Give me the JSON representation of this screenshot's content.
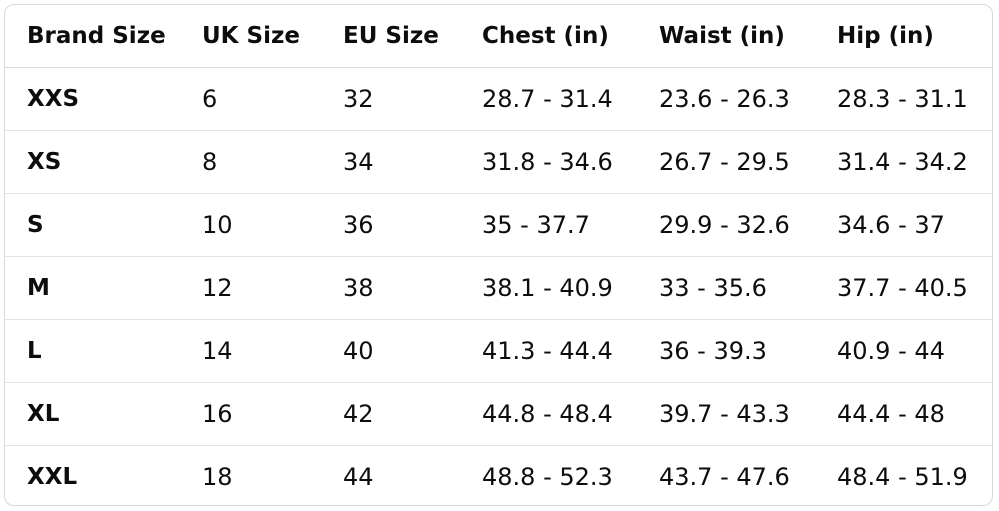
{
  "headers": [
    "Brand Size",
    "UK Size",
    "EU Size",
    "Chest (in)",
    "Waist (in)",
    "Hip (in)"
  ],
  "rows": [
    [
      "XXS",
      "6",
      "32",
      "28.7 - 31.4",
      "23.6 - 26.3",
      "28.3 - 31.1"
    ],
    [
      "XS",
      "8",
      "34",
      "31.8 - 34.6",
      "26.7 - 29.5",
      "31.4 - 34.2"
    ],
    [
      "S",
      "10",
      "36",
      "35 - 37.7",
      "29.9 - 32.6",
      "34.6 - 37"
    ],
    [
      "M",
      "12",
      "38",
      "38.1 - 40.9",
      "33 - 35.6",
      "37.7 - 40.5"
    ],
    [
      "L",
      "14",
      "40",
      "41.3 - 44.4",
      "36 - 39.3",
      "40.9 - 44"
    ],
    [
      "XL",
      "16",
      "42",
      "44.8 - 48.4",
      "39.7 - 43.3",
      "44.4 - 48"
    ],
    [
      "XXL",
      "18",
      "44",
      "48.8 - 52.3",
      "43.7 - 47.6",
      "48.4 - 51.9"
    ]
  ]
}
